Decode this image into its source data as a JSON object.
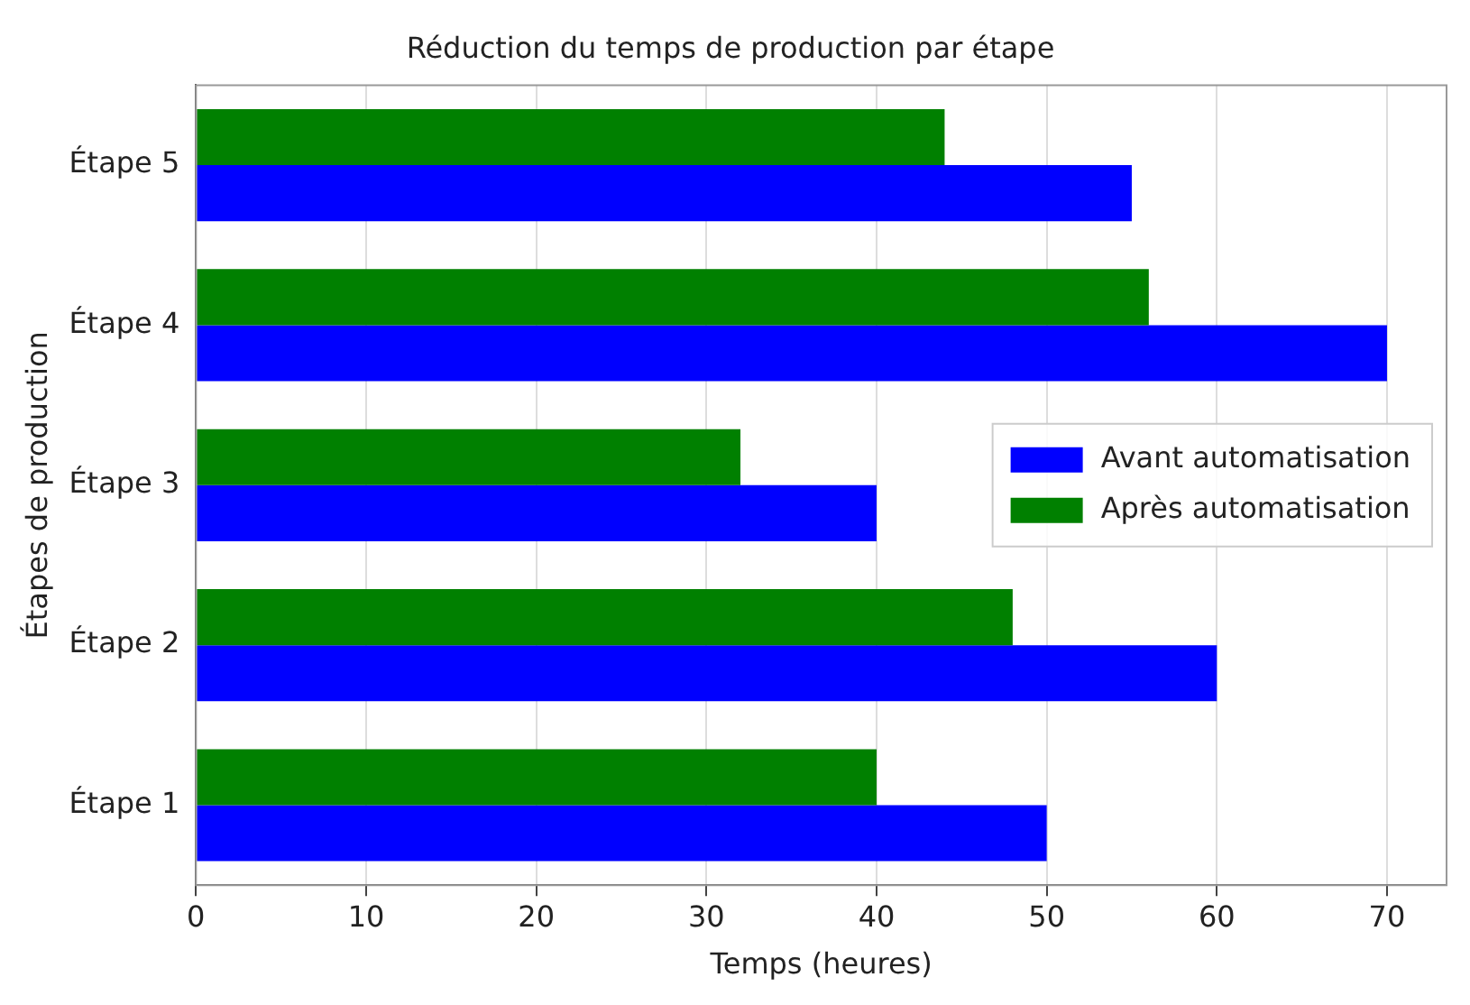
{
  "chart_data": {
    "type": "bar",
    "orientation": "horizontal",
    "title": "Réduction du temps de production par étape",
    "xlabel": "Temps (heures)",
    "ylabel": "Étapes de production",
    "categories": [
      "Étape 5",
      "Étape 4",
      "Étape 3",
      "Étape 2",
      "Étape 1"
    ],
    "series": [
      {
        "name": "Avant automatisation",
        "color": "#0000ff",
        "values": [
          55,
          70,
          40,
          60,
          50
        ]
      },
      {
        "name": "Après automatisation",
        "color": "#008000",
        "values": [
          44,
          56,
          32,
          48,
          40
        ]
      }
    ],
    "xlim": [
      0,
      73.5
    ],
    "xticks": [
      0,
      10,
      20,
      30,
      40,
      50,
      60,
      70
    ],
    "grid": "x",
    "legend": "right"
  }
}
